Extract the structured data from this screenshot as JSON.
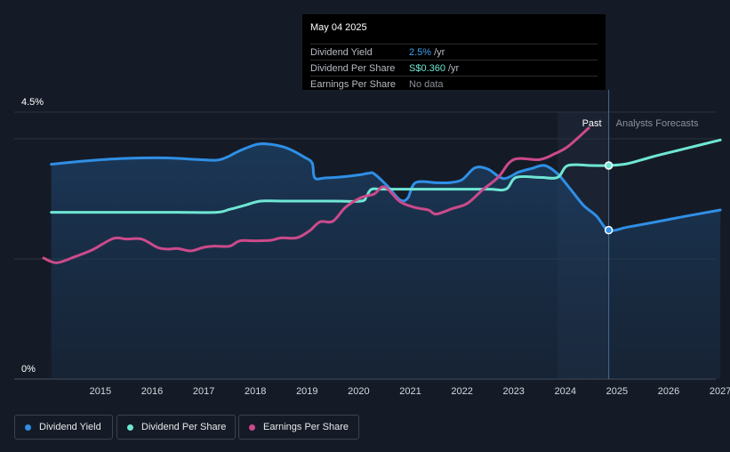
{
  "tooltip": {
    "date": "May 04 2025",
    "rows": [
      {
        "label": "Dividend Yield",
        "value": "2.5%",
        "unit": "/yr",
        "color": "#3ea2f1"
      },
      {
        "label": "Dividend Per Share",
        "value": "S$0.360",
        "unit": "/yr",
        "color": "#6fe6d4"
      },
      {
        "label": "Earnings Per Share",
        "value": "No data",
        "unit": "",
        "color": "#8a8f98"
      }
    ]
  },
  "legend": [
    {
      "label": "Dividend Yield",
      "color": "#2f8fe6"
    },
    {
      "label": "Dividend Per Share",
      "color": "#6fe6d4"
    },
    {
      "label": "Earnings Per Share",
      "color": "#cc4a8b"
    }
  ],
  "chart_data": {
    "type": "line",
    "y_axis": {
      "top_label": "4.5%",
      "bottom_label": "0%",
      "ylim": [
        0,
        4.5
      ],
      "unit": "%"
    },
    "x_ticks": [
      "2015",
      "2016",
      "2017",
      "2018",
      "2019",
      "2020",
      "2021",
      "2022",
      "2023",
      "2024",
      "2025",
      "2026",
      "2027"
    ],
    "xlim": [
      2014.4,
      2027.5
    ],
    "past_label": "Past",
    "forecast_label": "Analysts Forecasts",
    "forecast_start": 2024.35,
    "marker_date": 2025.34,
    "grid": true,
    "series": [
      {
        "name": "Dividend Yield",
        "color": "#2f8fe6",
        "points": [
          [
            2014.55,
            3.62
          ],
          [
            2015.0,
            3.66
          ],
          [
            2015.4,
            3.69
          ],
          [
            2016.0,
            3.72
          ],
          [
            2016.6,
            3.73
          ],
          [
            2017.0,
            3.72
          ],
          [
            2017.4,
            3.7
          ],
          [
            2017.75,
            3.69
          ],
          [
            2017.95,
            3.74
          ],
          [
            2018.2,
            3.85
          ],
          [
            2018.55,
            3.96
          ],
          [
            2018.85,
            3.95
          ],
          [
            2019.15,
            3.88
          ],
          [
            2019.45,
            3.74
          ],
          [
            2019.6,
            3.64
          ],
          [
            2019.65,
            3.39
          ],
          [
            2019.85,
            3.39
          ],
          [
            2020.2,
            3.41
          ],
          [
            2020.5,
            3.44
          ],
          [
            2020.7,
            3.47
          ],
          [
            2020.8,
            3.46
          ],
          [
            2021.05,
            3.26
          ],
          [
            2021.3,
            3.02
          ],
          [
            2021.45,
            3.05
          ],
          [
            2021.6,
            3.31
          ],
          [
            2022.0,
            3.31
          ],
          [
            2022.25,
            3.31
          ],
          [
            2022.5,
            3.36
          ],
          [
            2022.75,
            3.56
          ],
          [
            2023.0,
            3.54
          ],
          [
            2023.3,
            3.38
          ],
          [
            2023.6,
            3.49
          ],
          [
            2023.85,
            3.55
          ],
          [
            2024.1,
            3.6
          ],
          [
            2024.35,
            3.46
          ],
          [
            2024.6,
            3.2
          ],
          [
            2024.85,
            2.93
          ],
          [
            2025.1,
            2.75
          ],
          [
            2025.34,
            2.51
          ],
          [
            2025.7,
            2.56
          ],
          [
            2026.2,
            2.64
          ],
          [
            2026.8,
            2.74
          ],
          [
            2027.5,
            2.85
          ]
        ]
      },
      {
        "name": "Dividend Per Share",
        "color": "#6fe6d4",
        "points": [
          [
            2014.55,
            2.81
          ],
          [
            2015.0,
            2.81
          ],
          [
            2016.0,
            2.81
          ],
          [
            2017.0,
            2.81
          ],
          [
            2017.75,
            2.81
          ],
          [
            2018.0,
            2.86
          ],
          [
            2018.3,
            2.93
          ],
          [
            2018.6,
            3.0
          ],
          [
            2019.0,
            3.0
          ],
          [
            2020.0,
            3.0
          ],
          [
            2020.55,
            3.0
          ],
          [
            2020.65,
            3.08
          ],
          [
            2020.75,
            3.2
          ],
          [
            2021.0,
            3.2
          ],
          [
            2022.0,
            3.2
          ],
          [
            2023.0,
            3.2
          ],
          [
            2023.35,
            3.2
          ],
          [
            2023.55,
            3.4
          ],
          [
            2024.0,
            3.4
          ],
          [
            2024.35,
            3.4
          ],
          [
            2024.55,
            3.6
          ],
          [
            2025.0,
            3.6
          ],
          [
            2025.34,
            3.6
          ],
          [
            2025.7,
            3.63
          ],
          [
            2026.2,
            3.75
          ],
          [
            2026.8,
            3.88
          ],
          [
            2027.5,
            4.03
          ]
        ]
      },
      {
        "name": "Earnings Per Share",
        "color": "#cc4a8b",
        "points": [
          [
            2014.4,
            2.04
          ],
          [
            2014.65,
            1.96
          ],
          [
            2015.0,
            2.06
          ],
          [
            2015.35,
            2.18
          ],
          [
            2015.75,
            2.37
          ],
          [
            2016.0,
            2.36
          ],
          [
            2016.3,
            2.36
          ],
          [
            2016.6,
            2.22
          ],
          [
            2016.8,
            2.19
          ],
          [
            2017.0,
            2.2
          ],
          [
            2017.25,
            2.16
          ],
          [
            2017.5,
            2.22
          ],
          [
            2017.7,
            2.24
          ],
          [
            2018.0,
            2.24
          ],
          [
            2018.2,
            2.33
          ],
          [
            2018.5,
            2.33
          ],
          [
            2018.8,
            2.34
          ],
          [
            2019.0,
            2.38
          ],
          [
            2019.3,
            2.38
          ],
          [
            2019.55,
            2.5
          ],
          [
            2019.75,
            2.65
          ],
          [
            2020.0,
            2.66
          ],
          [
            2020.25,
            2.9
          ],
          [
            2020.55,
            3.06
          ],
          [
            2020.8,
            3.12
          ],
          [
            2021.0,
            3.24
          ],
          [
            2021.3,
            2.99
          ],
          [
            2021.6,
            2.89
          ],
          [
            2021.85,
            2.85
          ],
          [
            2022.0,
            2.78
          ],
          [
            2022.3,
            2.87
          ],
          [
            2022.6,
            2.96
          ],
          [
            2022.9,
            3.19
          ],
          [
            2023.2,
            3.4
          ],
          [
            2023.5,
            3.7
          ],
          [
            2024.0,
            3.7
          ],
          [
            2024.3,
            3.8
          ],
          [
            2024.55,
            3.92
          ],
          [
            2024.95,
            4.23
          ]
        ]
      }
    ]
  }
}
